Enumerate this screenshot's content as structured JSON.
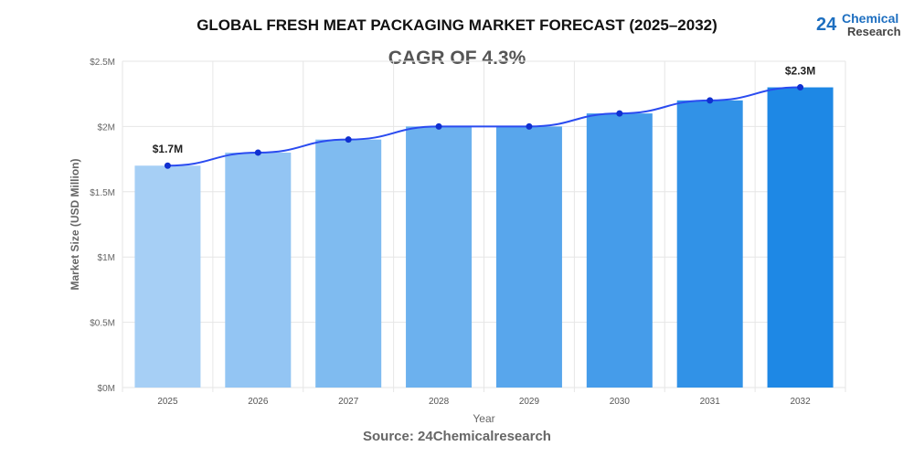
{
  "title": "GLOBAL FRESH MEAT PACKAGING MARKET FORECAST (2025–2032)",
  "subtitle": "CAGR OF 4.3%",
  "source": "Source: 24Chemicalresearch",
  "logo": {
    "number": "24",
    "line1": "Chemical",
    "line2": "Research"
  },
  "chart_data": {
    "type": "bar",
    "categories": [
      "2025",
      "2026",
      "2027",
      "2028",
      "2029",
      "2030",
      "2031",
      "2032"
    ],
    "values": [
      1.7,
      1.8,
      1.9,
      2.0,
      2.0,
      2.1,
      2.2,
      2.3
    ],
    "line_values": [
      1.7,
      1.8,
      1.9,
      2.0,
      2.0,
      2.1,
      2.2,
      2.3
    ],
    "xlabel": "Year",
    "ylabel": "Market Size (USD Million)",
    "ylim": [
      0,
      2.5
    ],
    "yticks": [
      0,
      0.5,
      1,
      1.5,
      2,
      2.5
    ],
    "ytick_labels": [
      "$0M",
      "$0.5M",
      "$1M",
      "$1.5M",
      "$2M",
      "$2.5M"
    ],
    "data_labels": [
      {
        "index": 0,
        "text": "$1.7M"
      },
      {
        "index": 7,
        "text": "$2.3M"
      }
    ],
    "colors": {
      "bar_start": "#a6cff5",
      "bar_end": "#1e88e5",
      "line": "#2a4bf0",
      "point": "#1030d0"
    },
    "grid": true
  }
}
